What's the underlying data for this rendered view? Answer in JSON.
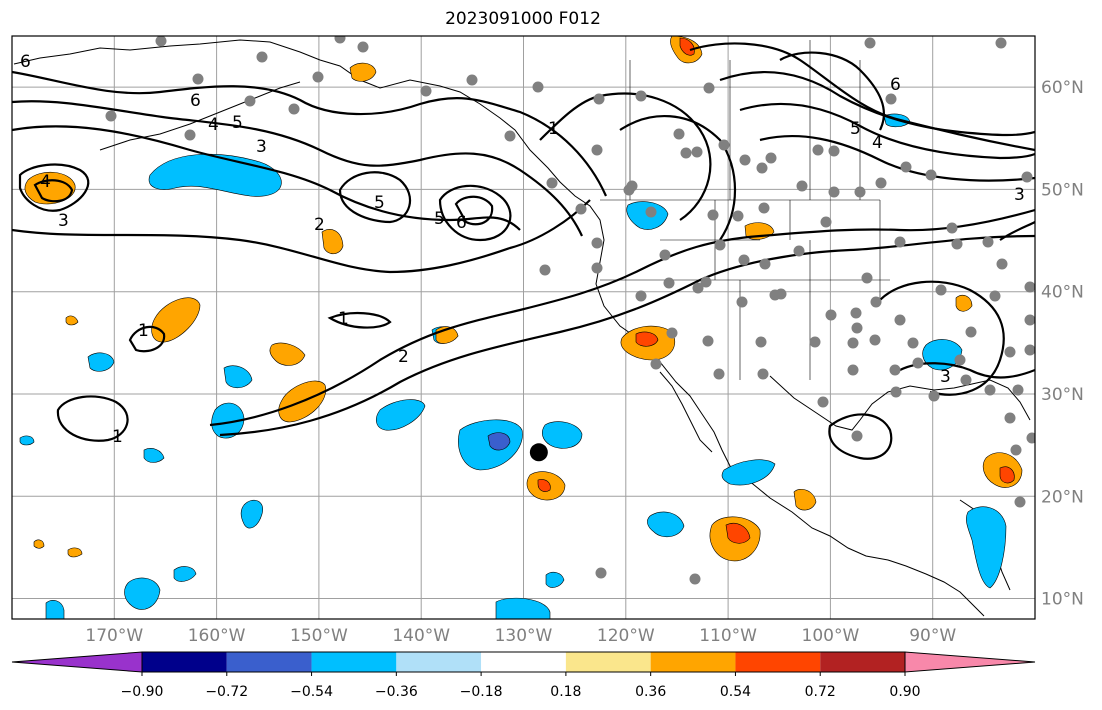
{
  "title": "2023091000 F012",
  "map": {
    "lon_range": [
      -180,
      -80
    ],
    "lat_range": [
      8,
      65
    ],
    "lat_labels": [
      "10°N",
      "20°N",
      "30°N",
      "40°N",
      "50°N",
      "60°N"
    ],
    "lat_values": [
      10,
      20,
      30,
      40,
      50,
      60
    ],
    "lon_labels": [
      "170°W",
      "160°W",
      "150°W",
      "140°W",
      "130°W",
      "120°W",
      "110°W",
      "100°W",
      "90°W"
    ],
    "lon_values": [
      -170,
      -160,
      -150,
      -140,
      -130,
      -120,
      -110,
      -100,
      -90
    ],
    "grid": true,
    "marker": {
      "lon": -128.5,
      "lat": 24.3,
      "color": "#000000"
    },
    "contour_labels": [
      "6",
      "6",
      "5",
      "4",
      "3",
      "2",
      "1",
      "1",
      "2",
      "1",
      "3",
      "4",
      "5",
      "5",
      "6",
      "5",
      "4",
      "6",
      "3",
      "1",
      "3"
    ]
  },
  "colorbar": {
    "ticks": [
      "−0.90",
      "−0.72",
      "−0.54",
      "−0.36",
      "−0.18",
      "0.18",
      "0.36",
      "0.54",
      "0.72",
      "0.90"
    ],
    "colors": [
      "#9932cc",
      "#00008b",
      "#3a5fcd",
      "#00bfff",
      "#b0e0f8",
      "#ffffff",
      "#fae68c",
      "#ffa500",
      "#ff4500",
      "#b22222",
      "#f888aa"
    ]
  }
}
